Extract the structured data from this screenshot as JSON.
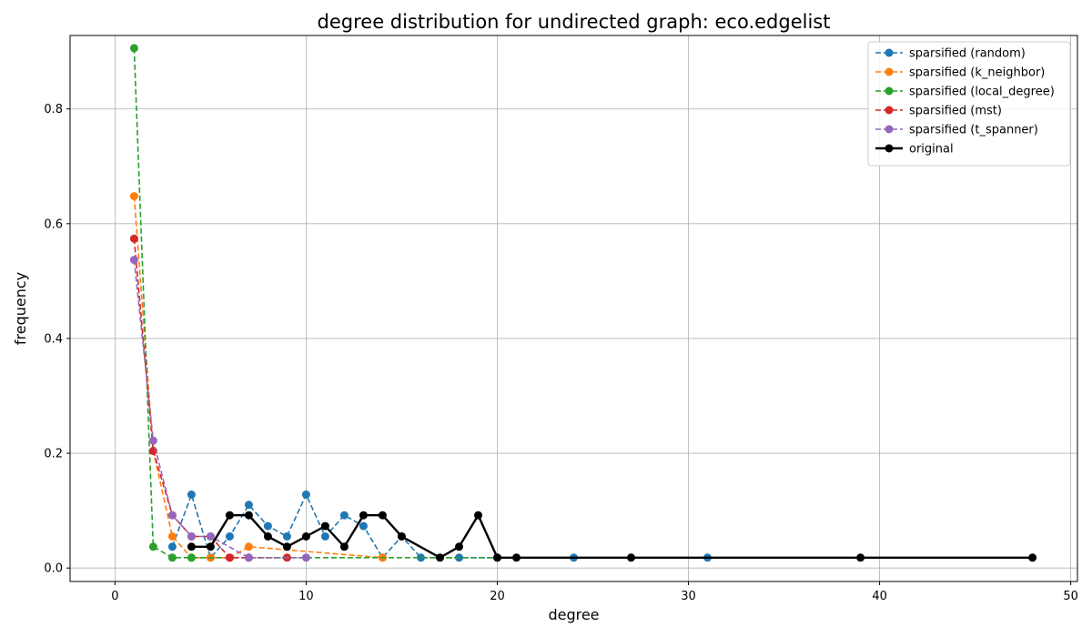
{
  "chart_data": {
    "type": "line",
    "title": "degree distribution for undirected graph: eco.edgelist",
    "xlabel": "degree",
    "ylabel": "frequency",
    "xlim": [
      -2.35,
      50.35
    ],
    "ylim": [
      -0.0235,
      0.928
    ],
    "xticks": [
      0,
      10,
      20,
      30,
      40,
      50
    ],
    "yticks": [
      0.0,
      0.2,
      0.4,
      0.6,
      0.8
    ],
    "ytick_labels": [
      "0.0",
      "0.2",
      "0.4",
      "0.6",
      "0.8"
    ],
    "grid": true,
    "legend_position": "top-right",
    "series": [
      {
        "name": "sparsified (random)",
        "color": "#1f77b4",
        "linestyle": "dashed",
        "x": [
          3,
          4,
          5,
          6,
          7,
          8,
          9,
          10,
          11,
          12,
          13,
          14,
          15,
          16,
          18,
          24,
          31
        ],
        "y": [
          0.037,
          0.128,
          0.018,
          0.055,
          0.11,
          0.073,
          0.055,
          0.128,
          0.055,
          0.092,
          0.073,
          0.018,
          0.055,
          0.018,
          0.018,
          0.018,
          0.018
        ]
      },
      {
        "name": "sparsified (k_neighbor)",
        "color": "#ff7f0e",
        "linestyle": "dashed",
        "x": [
          1,
          2,
          3,
          4,
          5,
          6,
          7,
          14
        ],
        "y": [
          0.648,
          0.204,
          0.055,
          0.018,
          0.018,
          0.018,
          0.037,
          0.018
        ]
      },
      {
        "name": "sparsified (local_degree)",
        "color": "#2ca02c",
        "linestyle": "dashed",
        "x": [
          1,
          2,
          3,
          4,
          20
        ],
        "y": [
          0.906,
          0.037,
          0.018,
          0.018,
          0.018
        ]
      },
      {
        "name": "sparsified (mst)",
        "color": "#d62728",
        "linestyle": "dashed",
        "x": [
          1,
          2,
          3,
          4,
          5,
          6,
          7,
          9
        ],
        "y": [
          0.574,
          0.204,
          0.092,
          0.055,
          0.055,
          0.018,
          0.018,
          0.018
        ]
      },
      {
        "name": "sparsified (t_spanner)",
        "color": "#9467bd",
        "linestyle": "dashed",
        "x": [
          1,
          2,
          3,
          4,
          5,
          7,
          10
        ],
        "y": [
          0.537,
          0.222,
          0.092,
          0.055,
          0.055,
          0.018,
          0.018
        ]
      },
      {
        "name": "original",
        "color": "#000000",
        "linestyle": "solid",
        "x": [
          4,
          5,
          6,
          7,
          8,
          9,
          10,
          11,
          12,
          13,
          14,
          15,
          17,
          18,
          19,
          20,
          21,
          27,
          39,
          48
        ],
        "y": [
          0.037,
          0.037,
          0.092,
          0.092,
          0.055,
          0.037,
          0.055,
          0.073,
          0.037,
          0.092,
          0.092,
          0.055,
          0.018,
          0.037,
          0.092,
          0.018,
          0.018,
          0.018,
          0.018,
          0.018
        ]
      }
    ]
  }
}
